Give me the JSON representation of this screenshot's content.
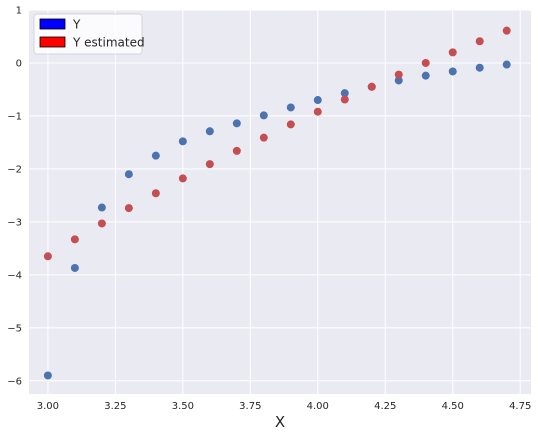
{
  "chart_data": {
    "type": "scatter",
    "title": "",
    "xlabel": "X",
    "ylabel": "",
    "xlim": [
      2.93,
      4.79
    ],
    "ylim": [
      -6.25,
      1.0
    ],
    "xticks": [
      3.0,
      3.25,
      3.5,
      3.75,
      4.0,
      4.25,
      4.5,
      4.75
    ],
    "xtick_labels": [
      "3.00",
      "3.25",
      "3.50",
      "3.75",
      "4.00",
      "4.25",
      "4.50",
      "4.75"
    ],
    "yticks": [
      1,
      0,
      -1,
      -2,
      -3,
      -4,
      -5,
      -6
    ],
    "ytick_labels": [
      "1",
      "0",
      "−1",
      "−2",
      "−3",
      "−4",
      "−5",
      "−6"
    ],
    "grid": true,
    "background_color": "#eaeaf2",
    "grid_color": "#ffffff",
    "legend_position": "top-left",
    "legend": [
      {
        "label": "Y",
        "color": "#0000ff"
      },
      {
        "label": "Y estimated",
        "color": "#ff0000"
      }
    ],
    "series": [
      {
        "name": "Y",
        "color": "#4c72b0",
        "x": [
          3.0,
          3.1,
          3.2,
          3.3,
          3.4,
          3.5,
          3.6,
          3.7,
          3.8,
          3.9,
          4.0,
          4.1,
          4.2,
          4.3,
          4.4,
          4.5,
          4.6,
          4.7
        ],
        "y": [
          -5.9,
          -3.87,
          -2.73,
          -2.1,
          -1.75,
          -1.48,
          -1.29,
          -1.14,
          -0.99,
          -0.84,
          -0.7,
          -0.57,
          -0.45,
          -0.33,
          -0.24,
          -0.16,
          -0.09,
          -0.03
        ]
      },
      {
        "name": "Y estimated",
        "color": "#c44e52",
        "x": [
          3.0,
          3.1,
          3.2,
          3.3,
          3.4,
          3.5,
          3.6,
          3.7,
          3.8,
          3.9,
          4.0,
          4.1,
          4.2,
          4.3,
          4.4,
          4.5,
          4.6,
          4.7
        ],
        "y": [
          -3.65,
          -3.33,
          -3.03,
          -2.74,
          -2.46,
          -2.18,
          -1.91,
          -1.66,
          -1.41,
          -1.16,
          -0.92,
          -0.69,
          -0.45,
          -0.22,
          0.0,
          0.2,
          0.41,
          0.61
        ]
      }
    ]
  }
}
